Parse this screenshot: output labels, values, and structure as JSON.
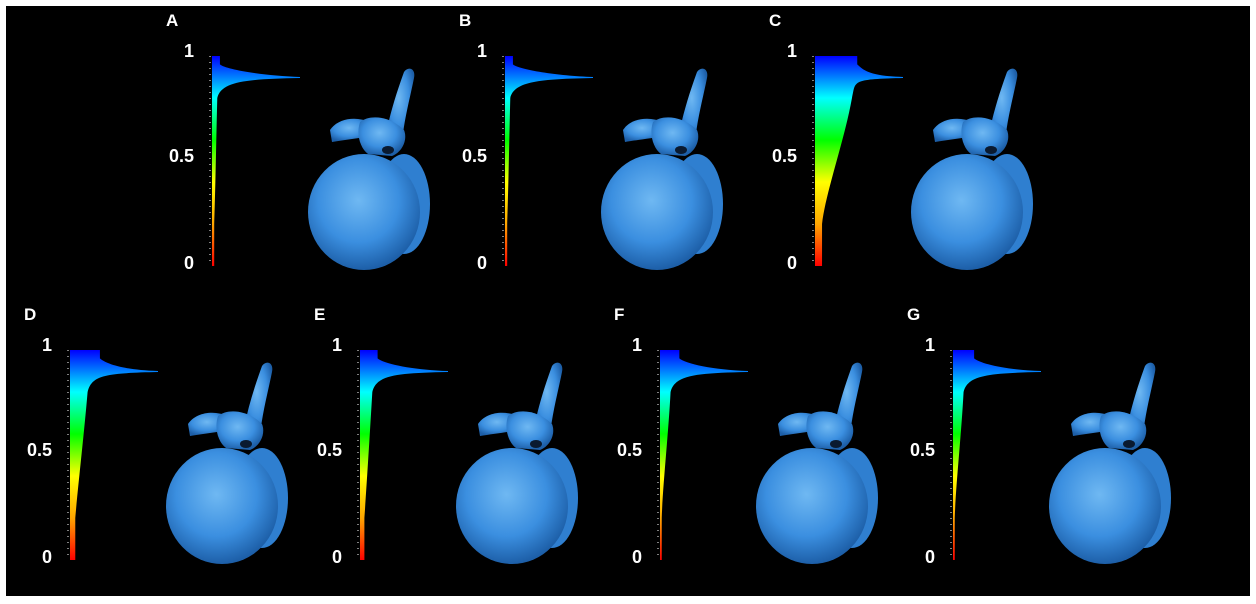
{
  "figure": {
    "background": "#000000",
    "colormap": [
      "#ff0000",
      "#ffa500",
      "#ffff00",
      "#00ff00",
      "#00ffff",
      "#0000ff"
    ],
    "bone_color": "#3b8fe0",
    "panels": [
      {
        "letter": "A",
        "tick_top": "1",
        "tick_mid": "0.5",
        "tick_bottom": "0",
        "histogram": {
          "peak_width": 1.0,
          "plateau_width": 0.09,
          "body_width": 0.06,
          "tail_width": 0.025
        }
      },
      {
        "letter": "B",
        "tick_top": "1",
        "tick_mid": "0.5",
        "tick_bottom": "0",
        "histogram": {
          "peak_width": 1.0,
          "plateau_width": 0.09,
          "body_width": 0.06,
          "tail_width": 0.025
        }
      },
      {
        "letter": "C",
        "tick_top": "1",
        "tick_mid": "0.5",
        "tick_bottom": "0",
        "histogram": {
          "peak_width": 1.0,
          "plateau_width": 0.48,
          "body_width": 0.42,
          "tail_width": 0.08
        }
      },
      {
        "letter": "D",
        "tick_top": "1",
        "tick_mid": "0.5",
        "tick_bottom": "0",
        "histogram": {
          "peak_width": 1.0,
          "plateau_width": 0.34,
          "body_width": 0.2,
          "tail_width": 0.06
        }
      },
      {
        "letter": "E",
        "tick_top": "1",
        "tick_mid": "0.5",
        "tick_bottom": "0",
        "histogram": {
          "peak_width": 1.0,
          "plateau_width": 0.2,
          "body_width": 0.14,
          "tail_width": 0.05
        }
      },
      {
        "letter": "F",
        "tick_top": "1",
        "tick_mid": "0.5",
        "tick_bottom": "0",
        "histogram": {
          "peak_width": 1.0,
          "plateau_width": 0.22,
          "body_width": 0.12,
          "tail_width": 0.02
        }
      },
      {
        "letter": "G",
        "tick_top": "1",
        "tick_mid": "0.5",
        "tick_bottom": "0",
        "histogram": {
          "peak_width": 1.0,
          "plateau_width": 0.24,
          "body_width": 0.12,
          "tail_width": 0.02
        }
      }
    ]
  }
}
